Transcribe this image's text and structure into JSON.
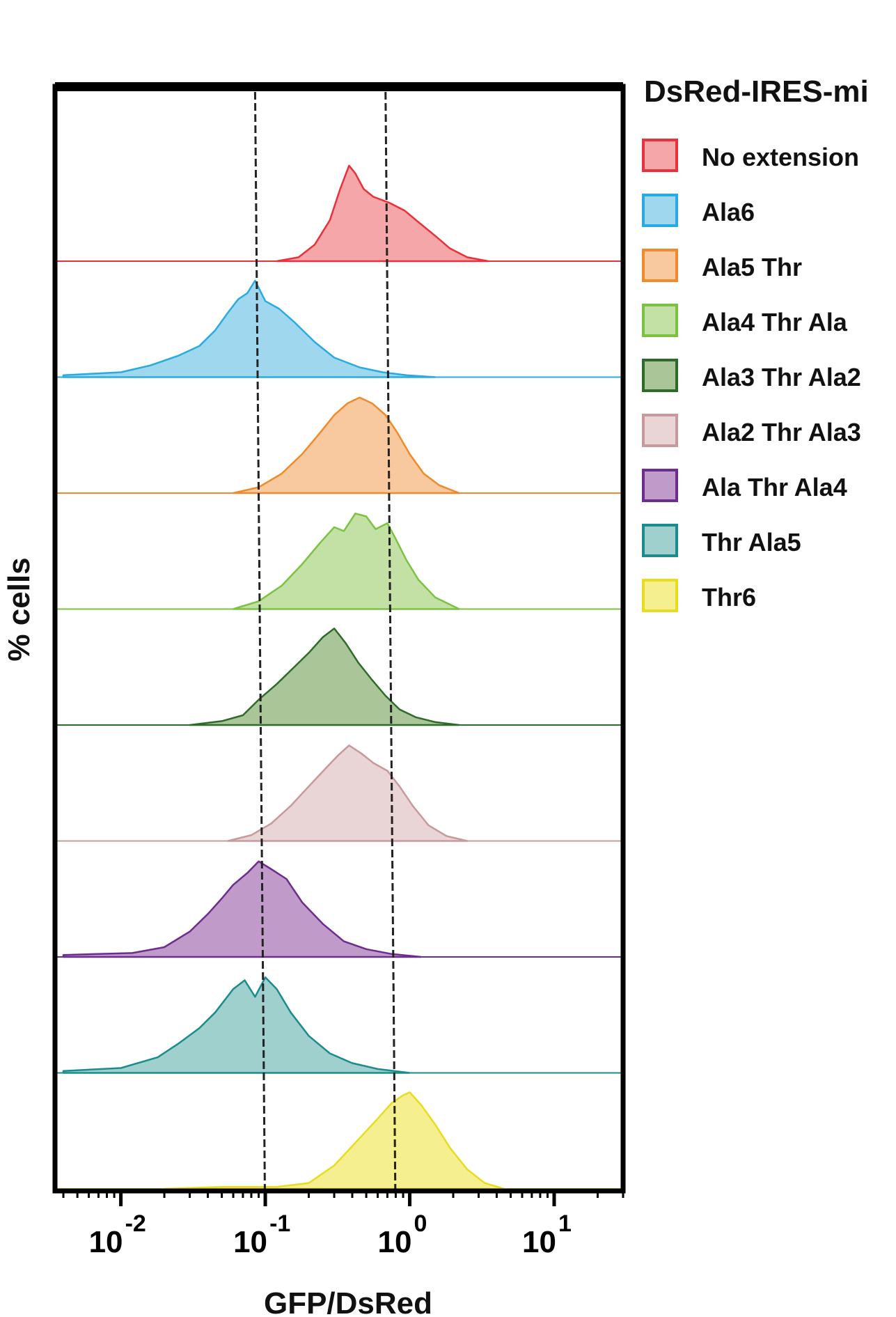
{
  "chart_data": {
    "type": "area",
    "subtype": "stacked-histogram",
    "title": "",
    "xlabel": "GFP/DsRed",
    "ylabel": "% cells",
    "xscale": "log",
    "xlim": [
      0.0035,
      30
    ],
    "x_ticks": [
      {
        "value": 0.01,
        "base": "10",
        "exp": "-2"
      },
      {
        "value": 0.1,
        "base": "10",
        "exp": "-1"
      },
      {
        "value": 1,
        "base": "10",
        "exp": "0"
      },
      {
        "value": 10,
        "base": "10",
        "exp": "1"
      }
    ],
    "reference_lines": [
      0.085,
      0.68
    ],
    "legend": {
      "title": "DsRed-IRES-mi",
      "placement": "right"
    },
    "series": [
      {
        "name": "No extension",
        "fill": "#f4a6a8",
        "stroke": "#e8313a",
        "points": [
          [
            0.12,
            0
          ],
          [
            0.17,
            0.04
          ],
          [
            0.22,
            0.17
          ],
          [
            0.28,
            0.42
          ],
          [
            0.33,
            0.74
          ],
          [
            0.38,
            0.98
          ],
          [
            0.42,
            0.9
          ],
          [
            0.48,
            0.74
          ],
          [
            0.56,
            0.66
          ],
          [
            0.72,
            0.6
          ],
          [
            0.92,
            0.52
          ],
          [
            1.15,
            0.4
          ],
          [
            1.5,
            0.26
          ],
          [
            1.9,
            0.13
          ],
          [
            2.5,
            0.04
          ],
          [
            3.5,
            0
          ]
        ]
      },
      {
        "name": "Ala6",
        "fill": "#9ed7ee",
        "stroke": "#29abe2",
        "points": [
          [
            0.004,
            0.02
          ],
          [
            0.01,
            0.05
          ],
          [
            0.016,
            0.12
          ],
          [
            0.025,
            0.22
          ],
          [
            0.035,
            0.32
          ],
          [
            0.045,
            0.48
          ],
          [
            0.055,
            0.66
          ],
          [
            0.065,
            0.8
          ],
          [
            0.075,
            0.86
          ],
          [
            0.085,
            0.99
          ],
          [
            0.1,
            0.78
          ],
          [
            0.125,
            0.7
          ],
          [
            0.16,
            0.56
          ],
          [
            0.22,
            0.36
          ],
          [
            0.3,
            0.2
          ],
          [
            0.45,
            0.1
          ],
          [
            0.65,
            0.05
          ],
          [
            0.95,
            0.02
          ],
          [
            1.5,
            0
          ]
        ]
      },
      {
        "name": "Ala5 Thr",
        "fill": "#f8c99f",
        "stroke": "#f08a2a",
        "points": [
          [
            0.06,
            0
          ],
          [
            0.09,
            0.06
          ],
          [
            0.13,
            0.2
          ],
          [
            0.18,
            0.4
          ],
          [
            0.24,
            0.62
          ],
          [
            0.3,
            0.8
          ],
          [
            0.37,
            0.92
          ],
          [
            0.45,
            0.98
          ],
          [
            0.55,
            0.92
          ],
          [
            0.68,
            0.8
          ],
          [
            0.82,
            0.62
          ],
          [
            1.0,
            0.4
          ],
          [
            1.25,
            0.2
          ],
          [
            1.6,
            0.08
          ],
          [
            2.2,
            0
          ]
        ]
      },
      {
        "name": "Ala4 Thr Ala",
        "fill": "#c3e0a5",
        "stroke": "#7cc242",
        "points": [
          [
            0.06,
            0
          ],
          [
            0.09,
            0.08
          ],
          [
            0.13,
            0.24
          ],
          [
            0.18,
            0.46
          ],
          [
            0.24,
            0.68
          ],
          [
            0.3,
            0.84
          ],
          [
            0.35,
            0.8
          ],
          [
            0.42,
            0.98
          ],
          [
            0.5,
            0.95
          ],
          [
            0.58,
            0.82
          ],
          [
            0.7,
            0.88
          ],
          [
            0.8,
            0.72
          ],
          [
            0.95,
            0.5
          ],
          [
            1.15,
            0.3
          ],
          [
            1.5,
            0.12
          ],
          [
            2.2,
            0
          ]
        ]
      },
      {
        "name": "Ala3 Thr Ala2",
        "fill": "#aac597",
        "stroke": "#2e6b2a",
        "points": [
          [
            0.03,
            0
          ],
          [
            0.05,
            0.04
          ],
          [
            0.07,
            0.1
          ],
          [
            0.09,
            0.26
          ],
          [
            0.12,
            0.42
          ],
          [
            0.16,
            0.6
          ],
          [
            0.2,
            0.74
          ],
          [
            0.25,
            0.9
          ],
          [
            0.3,
            0.99
          ],
          [
            0.36,
            0.84
          ],
          [
            0.44,
            0.64
          ],
          [
            0.55,
            0.46
          ],
          [
            0.68,
            0.3
          ],
          [
            0.85,
            0.16
          ],
          [
            1.1,
            0.08
          ],
          [
            1.5,
            0.03
          ],
          [
            2.2,
            0
          ]
        ]
      },
      {
        "name": "Ala2 Thr Ala3",
        "fill": "#ead5d6",
        "stroke": "#c8999b",
        "points": [
          [
            0.055,
            0
          ],
          [
            0.08,
            0.06
          ],
          [
            0.11,
            0.18
          ],
          [
            0.15,
            0.36
          ],
          [
            0.2,
            0.56
          ],
          [
            0.26,
            0.74
          ],
          [
            0.32,
            0.88
          ],
          [
            0.38,
            0.98
          ],
          [
            0.46,
            0.9
          ],
          [
            0.56,
            0.8
          ],
          [
            0.7,
            0.72
          ],
          [
            0.85,
            0.56
          ],
          [
            1.05,
            0.36
          ],
          [
            1.35,
            0.16
          ],
          [
            1.8,
            0.05
          ],
          [
            2.5,
            0
          ]
        ]
      },
      {
        "name": "Ala Thr Ala4",
        "fill": "#c09bc9",
        "stroke": "#6d2c8f",
        "points": [
          [
            0.004,
            0.02
          ],
          [
            0.012,
            0.04
          ],
          [
            0.02,
            0.1
          ],
          [
            0.03,
            0.26
          ],
          [
            0.04,
            0.44
          ],
          [
            0.05,
            0.6
          ],
          [
            0.06,
            0.74
          ],
          [
            0.075,
            0.86
          ],
          [
            0.09,
            0.98
          ],
          [
            0.11,
            0.9
          ],
          [
            0.14,
            0.8
          ],
          [
            0.18,
            0.56
          ],
          [
            0.25,
            0.34
          ],
          [
            0.35,
            0.16
          ],
          [
            0.5,
            0.08
          ],
          [
            0.75,
            0.03
          ],
          [
            1.2,
            0
          ]
        ]
      },
      {
        "name": "Thr Ala5",
        "fill": "#9fd0ce",
        "stroke": "#1a8c8c",
        "points": [
          [
            0.004,
            0.02
          ],
          [
            0.01,
            0.05
          ],
          [
            0.018,
            0.16
          ],
          [
            0.025,
            0.3
          ],
          [
            0.035,
            0.46
          ],
          [
            0.045,
            0.62
          ],
          [
            0.06,
            0.86
          ],
          [
            0.072,
            0.95
          ],
          [
            0.085,
            0.78
          ],
          [
            0.1,
            0.98
          ],
          [
            0.12,
            0.86
          ],
          [
            0.15,
            0.62
          ],
          [
            0.2,
            0.38
          ],
          [
            0.28,
            0.2
          ],
          [
            0.4,
            0.1
          ],
          [
            0.6,
            0.04
          ],
          [
            1.0,
            0
          ]
        ]
      },
      {
        "name": "Thr6",
        "fill": "#f5ef8f",
        "stroke": "#e8dc20",
        "points": [
          [
            0.02,
            0
          ],
          [
            0.05,
            0.02
          ],
          [
            0.12,
            0.02
          ],
          [
            0.2,
            0.06
          ],
          [
            0.3,
            0.24
          ],
          [
            0.45,
            0.52
          ],
          [
            0.6,
            0.72
          ],
          [
            0.75,
            0.88
          ],
          [
            0.9,
            0.96
          ],
          [
            1.0,
            0.99
          ],
          [
            1.2,
            0.86
          ],
          [
            1.5,
            0.66
          ],
          [
            1.9,
            0.42
          ],
          [
            2.5,
            0.2
          ],
          [
            3.3,
            0.06
          ],
          [
            4.5,
            0
          ]
        ]
      }
    ]
  }
}
